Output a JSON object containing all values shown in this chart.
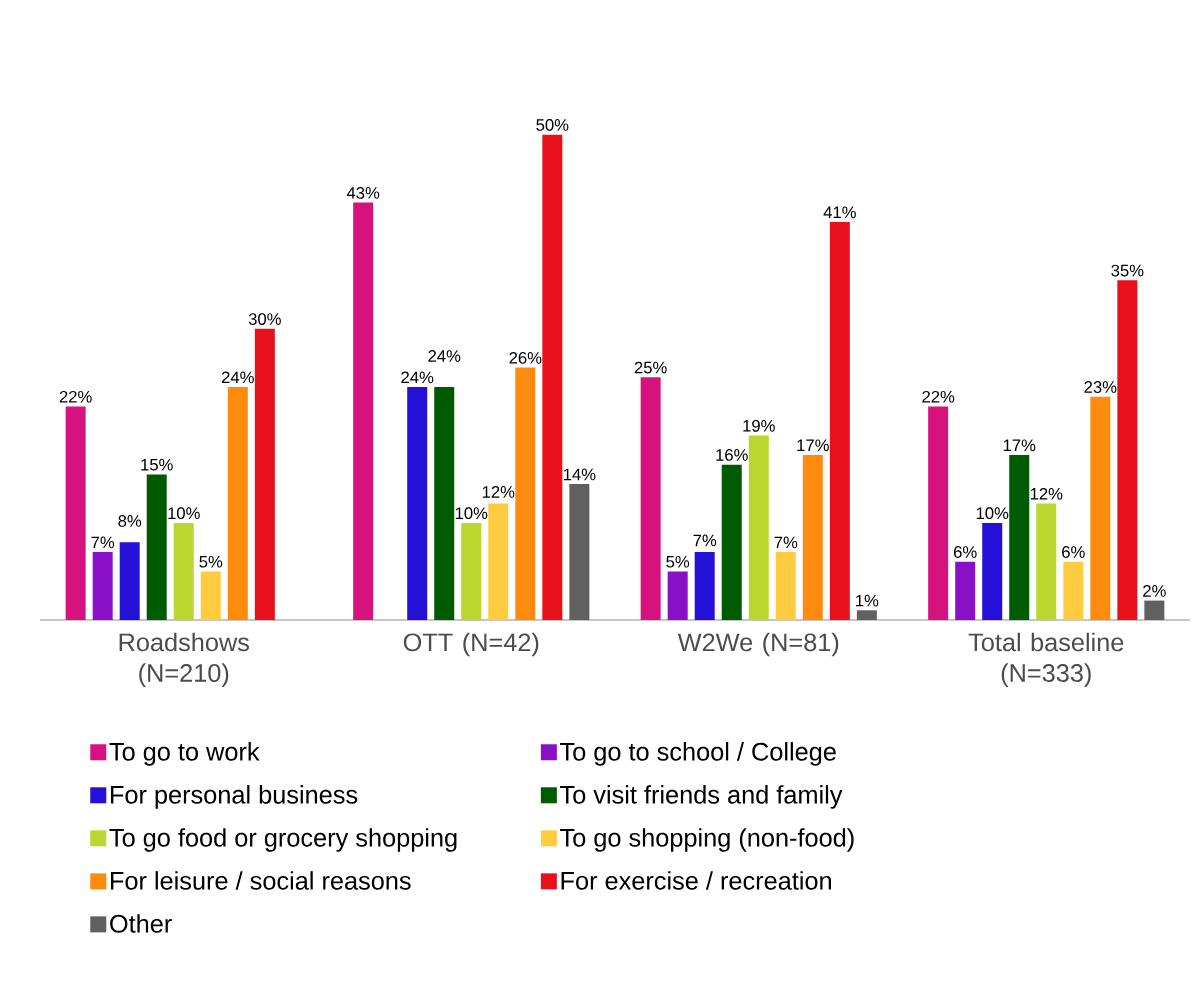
{
  "chart_data": {
    "type": "bar",
    "categories": [
      "Roadshows (N=210)",
      "OTT (N=42)",
      "W2We (N=81)",
      "Total baseline (N=333)"
    ],
    "series": [
      {
        "name": "To go to work",
        "color": "#d6127f",
        "values": [
          22,
          43,
          25,
          22
        ],
        "value_labels": [
          "22%",
          "43%",
          "25%",
          "22%"
        ]
      },
      {
        "name": "To go to school / College",
        "color": "#8a10c8",
        "values": [
          7,
          null,
          5,
          6
        ],
        "value_labels": [
          "7%",
          null,
          "5%",
          "6%"
        ]
      },
      {
        "name": "For personal business",
        "color": "#2410d6",
        "values": [
          8,
          24,
          7,
          10
        ],
        "value_labels": [
          "8%",
          "24%",
          "7%",
          "10%"
        ]
      },
      {
        "name": "To visit friends and family",
        "color": "#005a00",
        "values": [
          15,
          24,
          16,
          17
        ],
        "value_labels": [
          "15%",
          "24%",
          "16%",
          "17%"
        ]
      },
      {
        "name": "To go food or grocery shopping",
        "color": "#bcd630",
        "values": [
          10,
          10,
          19,
          12
        ],
        "value_labels": [
          "10%",
          "10%",
          "19%",
          "12%"
        ]
      },
      {
        "name": "To go shopping (non-food)",
        "color": "#ffcc40",
        "values": [
          5,
          12,
          7,
          6
        ],
        "value_labels": [
          "5%",
          "12%",
          "7%",
          "6%"
        ]
      },
      {
        "name": "For leisure / social reasons",
        "color": "#ff8a10",
        "values": [
          24,
          26,
          17,
          23
        ],
        "value_labels": [
          "24%",
          "26%",
          "17%",
          "23%"
        ]
      },
      {
        "name": "For exercise / recreation",
        "color": "#e8101a",
        "values": [
          30,
          50,
          41,
          35
        ],
        "value_labels": [
          "30%",
          "50%",
          "41%",
          "35%"
        ]
      },
      {
        "name": "Other",
        "color": "#606060",
        "values": [
          null,
          14,
          1,
          2
        ],
        "value_labels": [
          null,
          "14%",
          "1%",
          "2%"
        ]
      }
    ],
    "ylim": [
      0,
      50
    ],
    "legend": "bottom"
  }
}
